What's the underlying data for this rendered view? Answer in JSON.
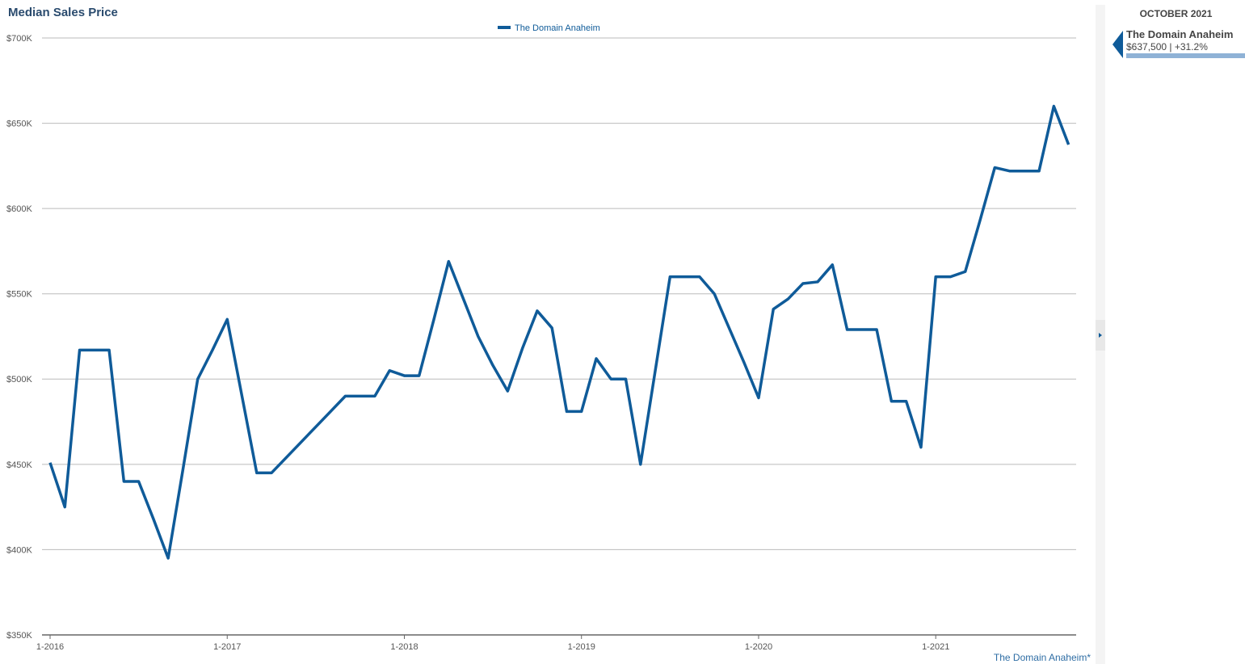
{
  "chart_data": {
    "type": "line",
    "title": "Median Sales Price",
    "categories": [
      "1-2016",
      null,
      null,
      null,
      null,
      null,
      null,
      null,
      null,
      null,
      null,
      null,
      "1-2017",
      null,
      null,
      null,
      null,
      null,
      null,
      null,
      null,
      null,
      null,
      null,
      "1-2018",
      null,
      null,
      null,
      null,
      null,
      null,
      null,
      null,
      null,
      null,
      null,
      "1-2019",
      null,
      null,
      null,
      null,
      null,
      null,
      null,
      null,
      null,
      null,
      null,
      "1-2020",
      null,
      null,
      null,
      null,
      null,
      null,
      null,
      null,
      null,
      null,
      null,
      "1-2021",
      null,
      null,
      null,
      null,
      null,
      null,
      null,
      null,
      null
    ],
    "series": [
      {
        "name": "The Domain Anaheim",
        "color": "#0f5b99",
        "values": [
          451000,
          425000,
          517000,
          517000,
          517000,
          440000,
          440000,
          418000,
          395000,
          447000,
          500000,
          517000,
          535000,
          490000,
          445000,
          445000,
          454000,
          463000,
          472000,
          481000,
          490000,
          490000,
          490000,
          505000,
          502000,
          502000,
          535000,
          569000,
          547000,
          525000,
          508000,
          493000,
          518000,
          540000,
          530000,
          481000,
          481000,
          512000,
          500000,
          500000,
          450000,
          505000,
          560000,
          560000,
          560000,
          550000,
          530000,
          510000,
          489000,
          541000,
          547000,
          556000,
          557000,
          567000,
          529000,
          529000,
          529000,
          487000,
          487000,
          460000,
          560000,
          560000,
          563000,
          593000,
          624000,
          622000,
          622000,
          622000,
          660000,
          637500
        ]
      }
    ],
    "ylim": [
      350000,
      700000
    ],
    "yticks": [
      {
        "value": 350000,
        "label": "$350K"
      },
      {
        "value": 400000,
        "label": "$400K"
      },
      {
        "value": 450000,
        "label": "$450K"
      },
      {
        "value": 500000,
        "label": "$500K"
      },
      {
        "value": 550000,
        "label": "$550K"
      },
      {
        "value": 600000,
        "label": "$600K"
      },
      {
        "value": 650000,
        "label": "$650K"
      },
      {
        "value": 700000,
        "label": "$700K"
      }
    ],
    "grid": true,
    "legend": "top",
    "footnote": "The Domain Anaheim*"
  },
  "sidebar": {
    "period": "OCTOBER 2021",
    "name": "The Domain Anaheim",
    "value": "$637,500 | +31.2%"
  }
}
